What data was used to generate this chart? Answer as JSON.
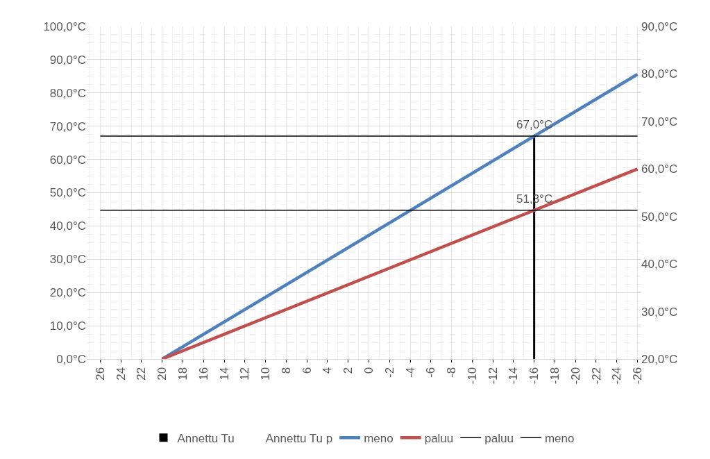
{
  "chart_data": {
    "type": "line",
    "xlim": [
      27.3,
      -26.3
    ],
    "xticks": [
      26,
      24,
      22,
      20,
      18,
      16,
      14,
      12,
      10,
      8,
      6,
      4,
      2,
      0,
      -2,
      -4,
      -6,
      -8,
      -10,
      -12,
      -14,
      -16,
      -18,
      -20,
      -22,
      -24,
      -26
    ],
    "ylim": [
      0,
      100
    ],
    "yticks": [
      {
        "value": 0,
        "label": "0,0°C"
      },
      {
        "value": 10,
        "label": "10,0°C"
      },
      {
        "value": 20,
        "label": "20,0°C"
      },
      {
        "value": 30,
        "label": "30,0°C"
      },
      {
        "value": 40,
        "label": "40,0°C"
      },
      {
        "value": 50,
        "label": "50,0°C"
      },
      {
        "value": 60,
        "label": "60,0°C"
      },
      {
        "value": 70,
        "label": "70,0°C"
      },
      {
        "value": 80,
        "label": "80,0°C"
      },
      {
        "value": 90,
        "label": "90,0°C"
      },
      {
        "value": 100,
        "label": "100,0°C"
      }
    ],
    "y2lim": [
      20,
      90
    ],
    "y2ticks": [
      {
        "value": 20,
        "label": "20,0°C"
      },
      {
        "value": 30,
        "label": "30,0°C"
      },
      {
        "value": 40,
        "label": "40,0°C"
      },
      {
        "value": 50,
        "label": "50,0°C"
      },
      {
        "value": 60,
        "label": "60,0°C"
      },
      {
        "value": 70,
        "label": "70,0°C"
      },
      {
        "value": 80,
        "label": "80,0°C"
      },
      {
        "value": 90,
        "label": "90,0°C"
      }
    ],
    "series": [
      {
        "name": "Annettu Tu",
        "type": "bar",
        "color": "#000000",
        "x": [
          -16
        ],
        "values": [
          67
        ]
      },
      {
        "name": "Annettu Tu p",
        "type": "bar",
        "values": [
          null
        ]
      },
      {
        "name": "meno",
        "color": "#4f81bd",
        "x": [
          20,
          -26
        ],
        "values": [
          0,
          85.6
        ]
      },
      {
        "name": "paluu",
        "axis": "y2",
        "color": "#c0504d",
        "x": [
          20,
          -26
        ],
        "values": [
          20,
          60
        ]
      },
      {
        "name": "paluu",
        "axis": "y2",
        "color": "#000000",
        "x": [
          26,
          -26
        ],
        "values": [
          51.3,
          51.3
        ]
      },
      {
        "name": "meno",
        "color": "#000000",
        "x": [
          26,
          -26
        ],
        "values": [
          67,
          67
        ]
      }
    ],
    "annotations": [
      {
        "text": "67,0°C",
        "x": -16,
        "y": 67
      },
      {
        "text": "51,3°C",
        "x": -16,
        "y": 51.3
      }
    ],
    "grid": true,
    "legend": "bottom",
    "marker": "none",
    "line_style": "solid"
  }
}
